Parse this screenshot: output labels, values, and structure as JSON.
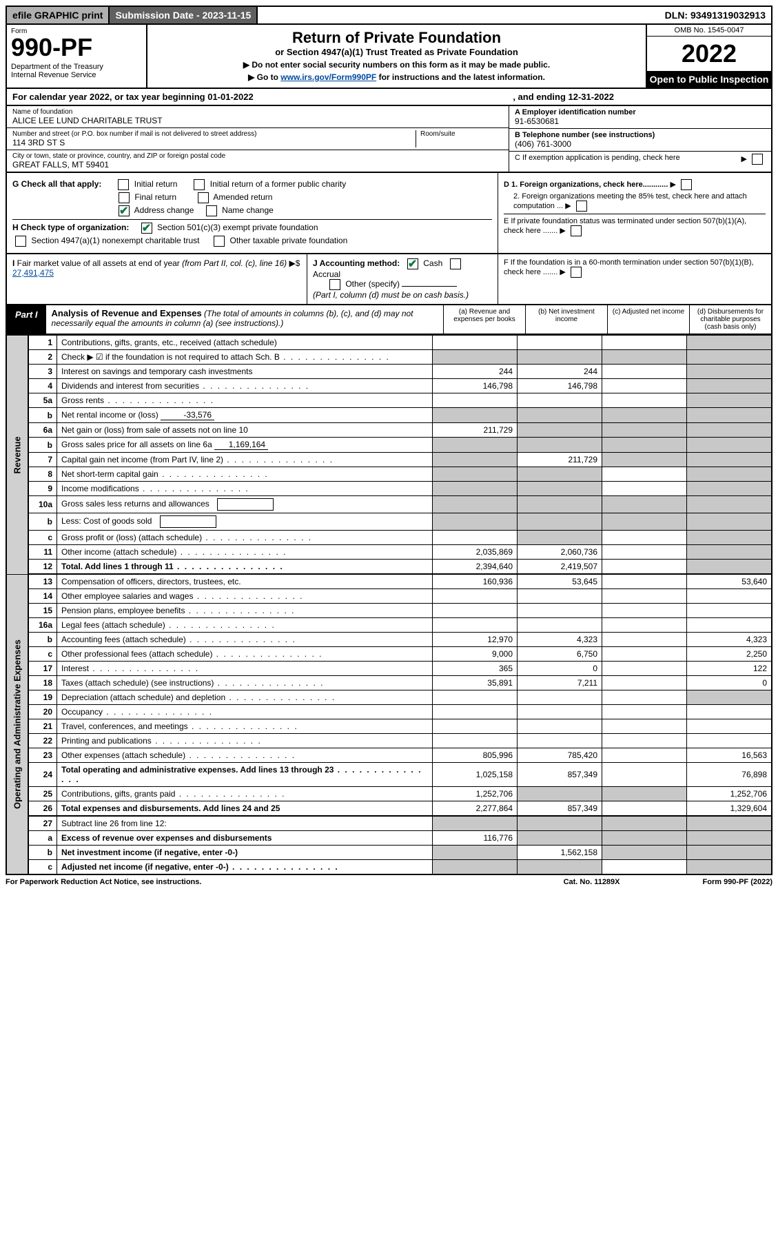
{
  "topbar": {
    "efile": "efile GRAPHIC print",
    "submission": "Submission Date - 2023-11-15",
    "dln": "DLN: 93491319032913"
  },
  "header": {
    "form_label": "Form",
    "form_number": "990-PF",
    "dept": "Department of the Treasury\nInternal Revenue Service",
    "title": "Return of Private Foundation",
    "subtitle": "or Section 4947(a)(1) Trust Treated as Private Foundation",
    "note1": "▶ Do not enter social security numbers on this form as it may be made public.",
    "note2_pre": "▶ Go to ",
    "note2_link": "www.irs.gov/Form990PF",
    "note2_post": " for instructions and the latest information.",
    "omb": "OMB No. 1545-0047",
    "year": "2022",
    "open": "Open to Public Inspection"
  },
  "cal": {
    "text1": "For calendar year 2022, or tax year beginning 01-01-2022",
    "text2": ", and ending 12-31-2022"
  },
  "id": {
    "name_label": "Name of foundation",
    "name": "ALICE LEE LUND CHARITABLE TRUST",
    "addr_label": "Number and street (or P.O. box number if mail is not delivered to street address)",
    "addr": "114 3RD ST S",
    "room_label": "Room/suite",
    "city_label": "City or town, state or province, country, and ZIP or foreign postal code",
    "city": "GREAT FALLS, MT  59401",
    "a_label": "A Employer identification number",
    "a_val": "91-6530681",
    "b_label": "B Telephone number (see instructions)",
    "b_val": "(406) 761-3000",
    "c_label": "C If exemption application is pending, check here"
  },
  "g": {
    "label": "G Check all that apply:",
    "opts": [
      "Initial return",
      "Initial return of a former public charity",
      "Final return",
      "Amended return",
      "Address change",
      "Name change"
    ]
  },
  "h": {
    "label": "H Check type of organization:",
    "opt1": "Section 501(c)(3) exempt private foundation",
    "opt2": "Section 4947(a)(1) nonexempt charitable trust",
    "opt3": "Other taxable private foundation"
  },
  "d": {
    "d1": "D 1. Foreign organizations, check here............",
    "d2": "2. Foreign organizations meeting the 85% test, check here and attach computation ...",
    "e": "E  If private foundation status was terminated under section 507(b)(1)(A), check here .......",
    "f": "F  If the foundation is in a 60-month termination under section 507(b)(1)(B), check here ......."
  },
  "i": {
    "label": "I Fair market value of all assets at end of year (from Part II, col. (c), line 16) ▶$",
    "val": "27,491,475"
  },
  "j": {
    "label": "J Accounting method:",
    "cash": "Cash",
    "accrual": "Accrual",
    "other": "Other (specify)",
    "note": "(Part I, column (d) must be on cash basis.)"
  },
  "part1": {
    "badge": "Part I",
    "title_bold": "Analysis of Revenue and Expenses",
    "title_rest": " (The total of amounts in columns (b), (c), and (d) may not necessarily equal the amounts in column (a) (see instructions).)",
    "cols": {
      "a": "(a) Revenue and expenses per books",
      "b": "(b) Net investment income",
      "c": "(c) Adjusted net income",
      "d": "(d) Disbursements for charitable purposes (cash basis only)"
    }
  },
  "sides": {
    "rev": "Revenue",
    "exp": "Operating and Administrative Expenses"
  },
  "rows": [
    {
      "ln": "1",
      "desc": "Contributions, gifts, grants, etc., received (attach schedule)",
      "a": "",
      "b": "",
      "c": "",
      "d": "grey"
    },
    {
      "ln": "2",
      "desc": "Check ▶ ☑ if the foundation is not required to attach Sch. B",
      "dots": true,
      "a": "grey",
      "b": "grey",
      "c": "grey",
      "d": "grey"
    },
    {
      "ln": "3",
      "desc": "Interest on savings and temporary cash investments",
      "a": "244",
      "b": "244",
      "c": "",
      "d": "grey"
    },
    {
      "ln": "4",
      "desc": "Dividends and interest from securities",
      "dots": true,
      "a": "146,798",
      "b": "146,798",
      "c": "",
      "d": "grey"
    },
    {
      "ln": "5a",
      "desc": "Gross rents",
      "dots": true,
      "a": "",
      "b": "",
      "c": "",
      "d": "grey"
    },
    {
      "ln": "b",
      "desc": "Net rental income or (loss)",
      "inline": "-33,576",
      "a": "grey",
      "b": "grey",
      "c": "grey",
      "d": "grey"
    },
    {
      "ln": "6a",
      "desc": "Net gain or (loss) from sale of assets not on line 10",
      "a": "211,729",
      "b": "grey",
      "c": "grey",
      "d": "grey"
    },
    {
      "ln": "b",
      "desc": "Gross sales price for all assets on line 6a",
      "inline": "1,169,164",
      "a": "grey",
      "b": "grey",
      "c": "grey",
      "d": "grey"
    },
    {
      "ln": "7",
      "desc": "Capital gain net income (from Part IV, line 2)",
      "dots": true,
      "a": "grey",
      "b": "211,729",
      "c": "grey",
      "d": "grey"
    },
    {
      "ln": "8",
      "desc": "Net short-term capital gain",
      "dots": true,
      "a": "grey",
      "b": "grey",
      "c": "",
      "d": "grey"
    },
    {
      "ln": "9",
      "desc": "Income modifications",
      "dots": true,
      "a": "grey",
      "b": "grey",
      "c": "",
      "d": "grey"
    },
    {
      "ln": "10a",
      "desc": "Gross sales less returns and allowances",
      "box": true,
      "a": "grey",
      "b": "grey",
      "c": "grey",
      "d": "grey"
    },
    {
      "ln": "b",
      "desc": "Less: Cost of goods sold",
      "dots": true,
      "box": true,
      "a": "grey",
      "b": "grey",
      "c": "grey",
      "d": "grey"
    },
    {
      "ln": "c",
      "desc": "Gross profit or (loss) (attach schedule)",
      "dots": true,
      "a": "",
      "b": "grey",
      "c": "",
      "d": "grey"
    },
    {
      "ln": "11",
      "desc": "Other income (attach schedule)",
      "dots": true,
      "a": "2,035,869",
      "b": "2,060,736",
      "c": "",
      "d": "grey"
    },
    {
      "ln": "12",
      "desc": "Total. Add lines 1 through 11",
      "dots": true,
      "bold": true,
      "a": "2,394,640",
      "b": "2,419,507",
      "c": "",
      "d": "grey"
    },
    {
      "ln": "13",
      "desc": "Compensation of officers, directors, trustees, etc.",
      "thick": true,
      "a": "160,936",
      "b": "53,645",
      "c": "",
      "d": "53,640"
    },
    {
      "ln": "14",
      "desc": "Other employee salaries and wages",
      "dots": true,
      "a": "",
      "b": "",
      "c": "",
      "d": ""
    },
    {
      "ln": "15",
      "desc": "Pension plans, employee benefits",
      "dots": true,
      "a": "",
      "b": "",
      "c": "",
      "d": ""
    },
    {
      "ln": "16a",
      "desc": "Legal fees (attach schedule)",
      "dots": true,
      "a": "",
      "b": "",
      "c": "",
      "d": ""
    },
    {
      "ln": "b",
      "desc": "Accounting fees (attach schedule)",
      "dots": true,
      "a": "12,970",
      "b": "4,323",
      "c": "",
      "d": "4,323"
    },
    {
      "ln": "c",
      "desc": "Other professional fees (attach schedule)",
      "dots": true,
      "a": "9,000",
      "b": "6,750",
      "c": "",
      "d": "2,250"
    },
    {
      "ln": "17",
      "desc": "Interest",
      "dots": true,
      "a": "365",
      "b": "0",
      "c": "",
      "d": "122"
    },
    {
      "ln": "18",
      "desc": "Taxes (attach schedule) (see instructions)",
      "dots": true,
      "a": "35,891",
      "b": "7,211",
      "c": "",
      "d": "0"
    },
    {
      "ln": "19",
      "desc": "Depreciation (attach schedule) and depletion",
      "dots": true,
      "a": "",
      "b": "",
      "c": "",
      "d": "grey"
    },
    {
      "ln": "20",
      "desc": "Occupancy",
      "dots": true,
      "a": "",
      "b": "",
      "c": "",
      "d": ""
    },
    {
      "ln": "21",
      "desc": "Travel, conferences, and meetings",
      "dots": true,
      "a": "",
      "b": "",
      "c": "",
      "d": ""
    },
    {
      "ln": "22",
      "desc": "Printing and publications",
      "dots": true,
      "a": "",
      "b": "",
      "c": "",
      "d": ""
    },
    {
      "ln": "23",
      "desc": "Other expenses (attach schedule)",
      "dots": true,
      "a": "805,996",
      "b": "785,420",
      "c": "",
      "d": "16,563"
    },
    {
      "ln": "24",
      "desc": "Total operating and administrative expenses. Add lines 13 through 23",
      "dots": true,
      "bold": true,
      "a": "1,025,158",
      "b": "857,349",
      "c": "",
      "d": "76,898"
    },
    {
      "ln": "25",
      "desc": "Contributions, gifts, grants paid",
      "dots": true,
      "a": "1,252,706",
      "b": "grey",
      "c": "grey",
      "d": "1,252,706"
    },
    {
      "ln": "26",
      "desc": "Total expenses and disbursements. Add lines 24 and 25",
      "bold": true,
      "a": "2,277,864",
      "b": "857,349",
      "c": "",
      "d": "1,329,604"
    },
    {
      "ln": "27",
      "desc": "Subtract line 26 from line 12:",
      "thick": true,
      "a": "grey",
      "b": "grey",
      "c": "grey",
      "d": "grey"
    },
    {
      "ln": "a",
      "desc": "Excess of revenue over expenses and disbursements",
      "bold": true,
      "a": "116,776",
      "b": "grey",
      "c": "grey",
      "d": "grey"
    },
    {
      "ln": "b",
      "desc": "Net investment income (if negative, enter -0-)",
      "bold": true,
      "a": "grey",
      "b": "1,562,158",
      "c": "grey",
      "d": "grey"
    },
    {
      "ln": "c",
      "desc": "Adjusted net income (if negative, enter -0-)",
      "bold": true,
      "dots": true,
      "a": "grey",
      "b": "grey",
      "c": "",
      "d": "grey"
    }
  ],
  "footer": {
    "left": "For Paperwork Reduction Act Notice, see instructions.",
    "mid": "Cat. No. 11289X",
    "right": "Form 990-PF (2022)"
  }
}
